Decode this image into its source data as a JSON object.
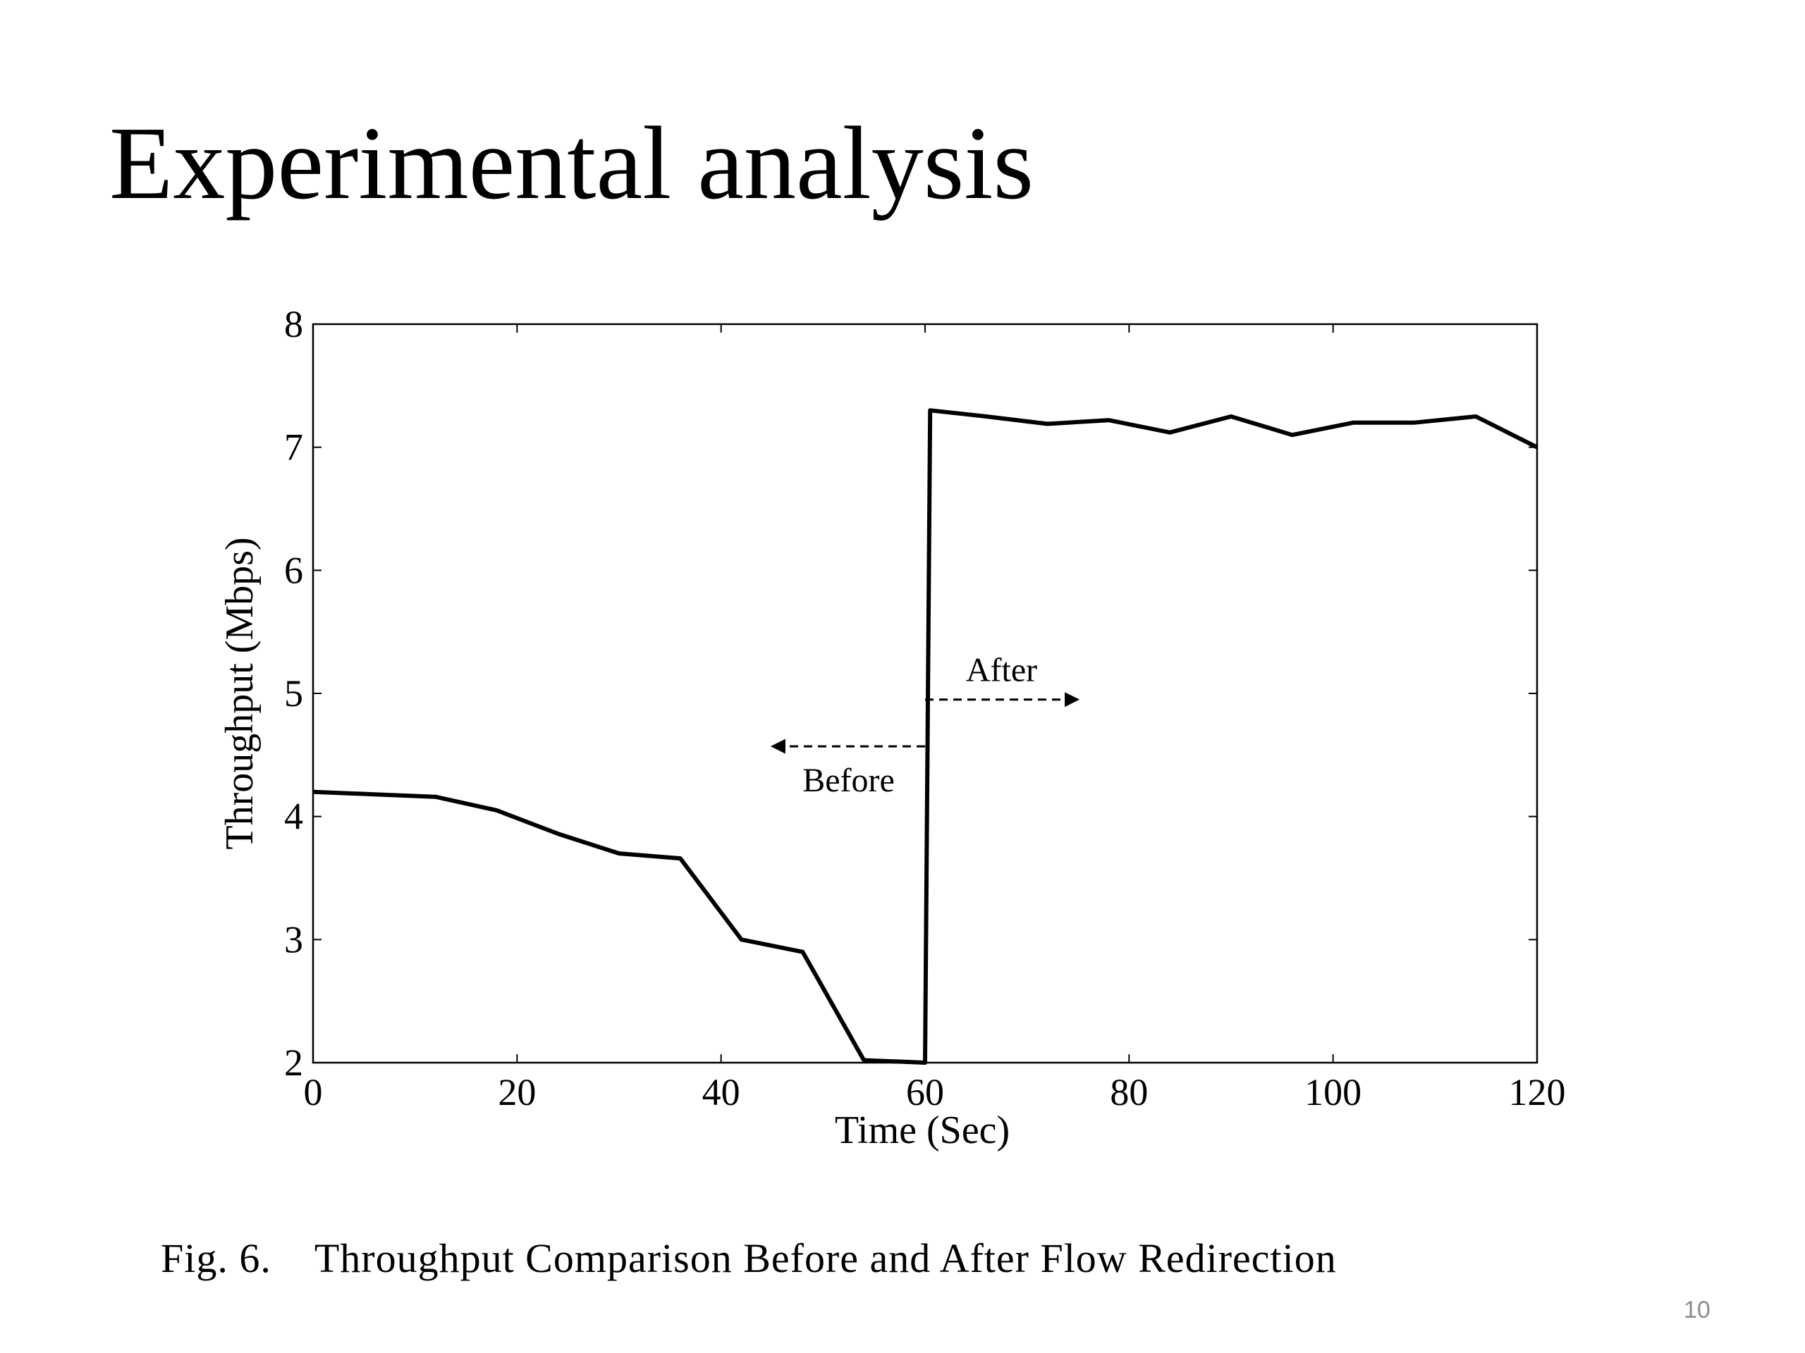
{
  "slide": {
    "title": "Experimental analysis",
    "caption": "Fig. 6.    Throughput Comparison Before and After Flow Redirection",
    "page_number": "10"
  },
  "chart_data": {
    "type": "line",
    "title": "",
    "xlabel": "Time (Sec)",
    "ylabel": "Throughput (Mbps)",
    "xlim": [
      0,
      120
    ],
    "ylim": [
      2,
      8
    ],
    "xticks": [
      0,
      20,
      40,
      60,
      80,
      100,
      120
    ],
    "yticks": [
      2,
      3,
      4,
      5,
      6,
      7,
      8
    ],
    "grid": false,
    "series": [
      {
        "x": [
          0,
          6,
          12,
          18,
          24,
          30,
          36,
          42,
          48,
          54,
          60,
          60.5,
          66,
          72,
          78,
          84,
          90,
          96,
          102,
          108,
          114,
          120
        ],
        "y": [
          4.2,
          4.18,
          4.16,
          4.05,
          3.86,
          3.7,
          3.66,
          3.0,
          2.9,
          2.02,
          2.0,
          7.3,
          7.25,
          7.19,
          7.22,
          7.12,
          7.25,
          7.1,
          7.2,
          7.2,
          7.25,
          7.0
        ]
      }
    ],
    "annotations": [
      {
        "text": "Before",
        "arrow_from_x": 60,
        "arrow_to_x": 45,
        "arrow_y": 4.57,
        "direction": "left"
      },
      {
        "text": "After",
        "arrow_from_x": 60,
        "arrow_to_x": 75,
        "arrow_y": 4.95,
        "direction": "right"
      }
    ],
    "colors": {
      "line": "#000000",
      "axes": "#000000"
    }
  }
}
